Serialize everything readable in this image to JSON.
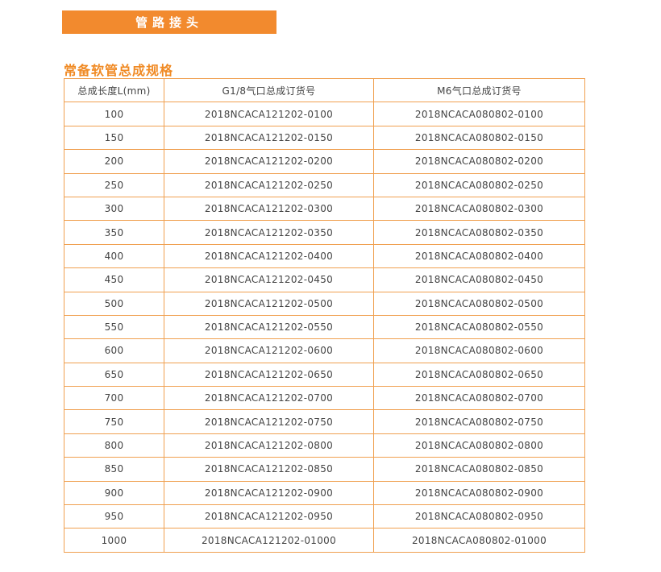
{
  "banner": {
    "title": "管路接头"
  },
  "section": {
    "title": "常备软管总成规格"
  },
  "colors": {
    "accent": "#f28a2e",
    "border": "#f0a050"
  },
  "table": {
    "headers": [
      "总成长度L(mm)",
      "G1/8气口总成订货号",
      "M6气口总成订货号"
    ],
    "rows": [
      [
        "100",
        "2018NCACA121202-0100",
        "2018NCACA080802-0100"
      ],
      [
        "150",
        "2018NCACA121202-0150",
        "2018NCACA080802-0150"
      ],
      [
        "200",
        "2018NCACA121202-0200",
        "2018NCACA080802-0200"
      ],
      [
        "250",
        "2018NCACA121202-0250",
        "2018NCACA080802-0250"
      ],
      [
        "300",
        "2018NCACA121202-0300",
        "2018NCACA080802-0300"
      ],
      [
        "350",
        "2018NCACA121202-0350",
        "2018NCACA080802-0350"
      ],
      [
        "400",
        "2018NCACA121202-0400",
        "2018NCACA080802-0400"
      ],
      [
        "450",
        "2018NCACA121202-0450",
        "2018NCACA080802-0450"
      ],
      [
        "500",
        "2018NCACA121202-0500",
        "2018NCACA080802-0500"
      ],
      [
        "550",
        "2018NCACA121202-0550",
        "2018NCACA080802-0550"
      ],
      [
        "600",
        "2018NCACA121202-0600",
        "2018NCACA080802-0600"
      ],
      [
        "650",
        "2018NCACA121202-0650",
        "2018NCACA080802-0650"
      ],
      [
        "700",
        "2018NCACA121202-0700",
        "2018NCACA080802-0700"
      ],
      [
        "750",
        "2018NCACA121202-0750",
        "2018NCACA080802-0750"
      ],
      [
        "800",
        "2018NCACA121202-0800",
        "2018NCACA080802-0800"
      ],
      [
        "850",
        "2018NCACA121202-0850",
        "2018NCACA080802-0850"
      ],
      [
        "900",
        "2018NCACA121202-0900",
        "2018NCACA080802-0900"
      ],
      [
        "950",
        "2018NCACA121202-0950",
        "2018NCACA080802-0950"
      ],
      [
        "1000",
        "2018NCACA121202-01000",
        "2018NCACA080802-01000"
      ]
    ]
  }
}
